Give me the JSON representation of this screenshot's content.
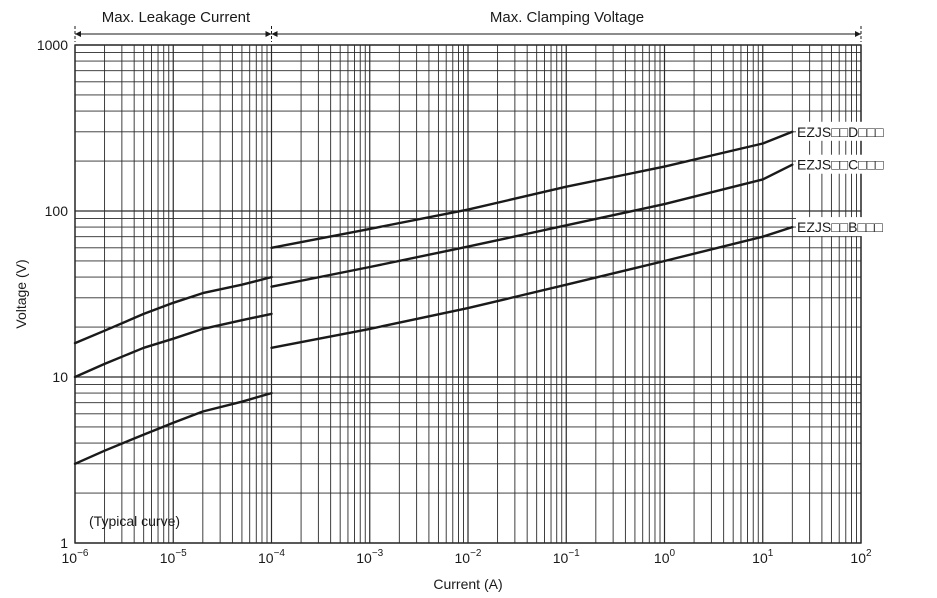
{
  "chart_data": {
    "type": "line",
    "title": "",
    "xlabel": "Current (A)",
    "ylabel": "Voltage (V)",
    "x_scale": "log",
    "y_scale": "log",
    "xlim": [
      1e-06,
      100
    ],
    "ylim": [
      1,
      1000
    ],
    "grid": true,
    "x_tick_labels": [
      {
        "value": 1e-06,
        "base": "10",
        "exp": "−6"
      },
      {
        "value": 1e-05,
        "base": "10",
        "exp": "−5"
      },
      {
        "value": 0.0001,
        "base": "10",
        "exp": "−4"
      },
      {
        "value": 0.001,
        "base": "10",
        "exp": "−3"
      },
      {
        "value": 0.01,
        "base": "10",
        "exp": "−2"
      },
      {
        "value": 0.1,
        "base": "10",
        "exp": "−1"
      },
      {
        "value": 1,
        "base": "10",
        "exp": "0"
      },
      {
        "value": 10,
        "base": "10",
        "exp": "1"
      },
      {
        "value": 100,
        "base": "10",
        "exp": "2"
      }
    ],
    "y_tick_labels": [
      {
        "value": 1,
        "text": "1"
      },
      {
        "value": 10,
        "text": "10"
      },
      {
        "value": 100,
        "text": "100"
      },
      {
        "value": 1000,
        "text": "1000"
      }
    ],
    "regions": [
      {
        "label": "Max. Leakage Current",
        "x_range": [
          1e-06,
          0.0001
        ]
      },
      {
        "label": "Max. Clamping Voltage",
        "x_range": [
          0.0001,
          100
        ]
      }
    ],
    "annotations": [
      "(Typical curve)"
    ],
    "series": [
      {
        "name": "EZJS□□D□□□",
        "segments": [
          {
            "x": [
              1e-06,
              2e-06,
              5e-06,
              1e-05,
              2e-05,
              5e-05,
              0.0001
            ],
            "y": [
              16,
              19,
              24,
              28,
              32,
              36,
              40
            ]
          },
          {
            "x": [
              0.0001,
              0.001,
              0.01,
              0.1,
              1,
              10,
              20
            ],
            "y": [
              60,
              78,
              102,
              140,
              185,
              255,
              300
            ]
          }
        ]
      },
      {
        "name": "EZJS□□C□□□",
        "segments": [
          {
            "x": [
              1e-06,
              2e-06,
              5e-06,
              1e-05,
              2e-05,
              5e-05,
              0.0001
            ],
            "y": [
              10,
              12,
              15,
              17,
              19.5,
              22,
              24
            ]
          },
          {
            "x": [
              0.0001,
              0.001,
              0.01,
              0.1,
              1,
              10,
              20
            ],
            "y": [
              35,
              46,
              61,
              82,
              110,
              155,
              190
            ]
          }
        ]
      },
      {
        "name": "EZJS□□B□□□",
        "segments": [
          {
            "x": [
              1e-06,
              2e-06,
              5e-06,
              1e-05,
              2e-05,
              5e-05,
              0.0001
            ],
            "y": [
              3,
              3.6,
              4.5,
              5.3,
              6.2,
              7.1,
              8
            ]
          },
          {
            "x": [
              0.0001,
              0.001,
              0.01,
              0.1,
              1,
              10,
              20
            ],
            "y": [
              15,
              19.5,
              26,
              36,
              50,
              70,
              80
            ]
          }
        ]
      }
    ]
  },
  "colors": {
    "line": "#1a1a1a",
    "grid": "#2a2a2a",
    "background": "#ffffff"
  }
}
